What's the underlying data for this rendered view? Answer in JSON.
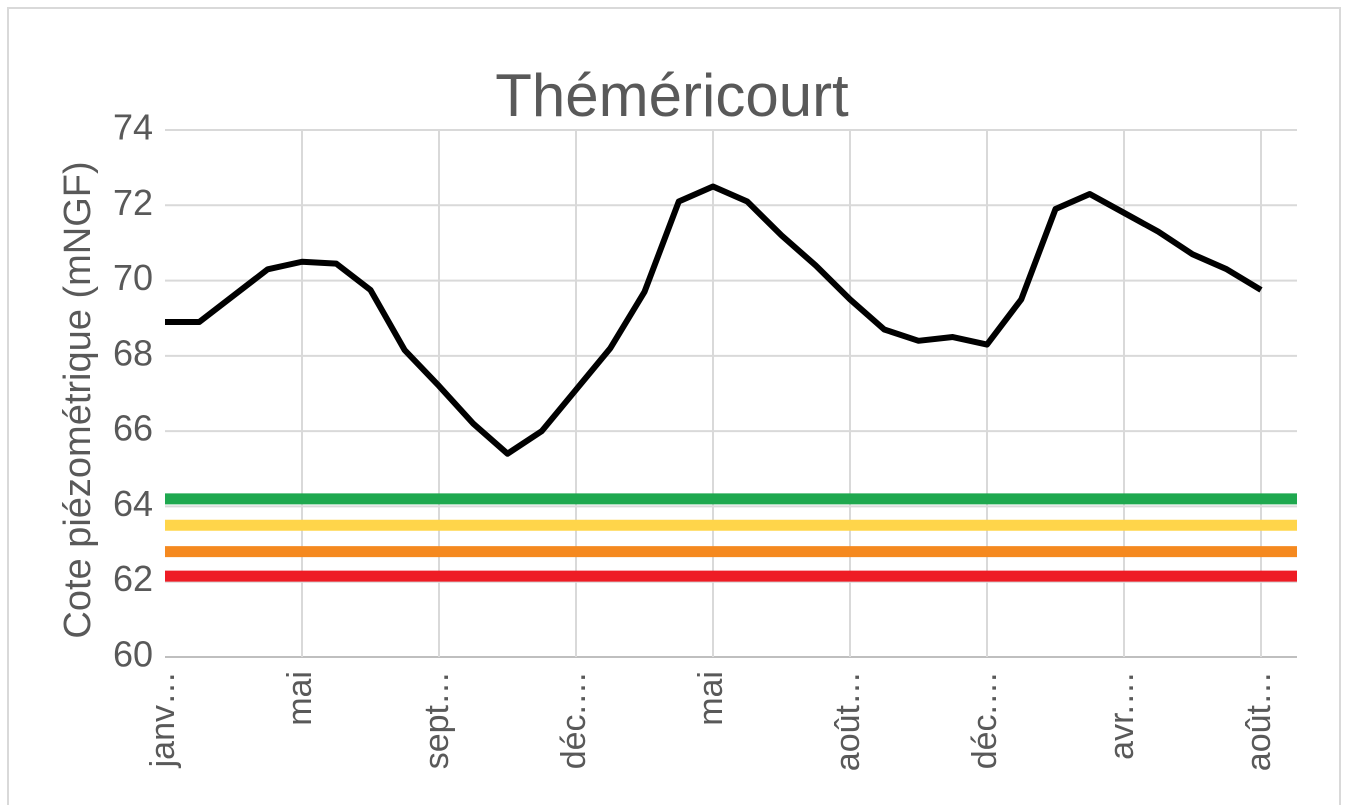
{
  "chart_data": {
    "type": "line",
    "title": "Théméricourt",
    "y_label": "Cote piézométrique (mNGF)",
    "categories": [
      "janv…",
      null,
      null,
      null,
      "mai",
      null,
      null,
      null,
      "sept…",
      null,
      null,
      null,
      "déc.…",
      null,
      null,
      null,
      "mai",
      null,
      null,
      null,
      "août…",
      null,
      null,
      null,
      "déc.…",
      null,
      null,
      null,
      "avr.…",
      null,
      null,
      null,
      "août…"
    ],
    "series": [
      {
        "color": "#000000",
        "values": [
          68.9,
          68.9,
          69.6,
          70.3,
          70.5,
          70.45,
          69.75,
          68.15,
          67.2,
          66.2,
          65.4,
          66.0,
          67.1,
          68.2,
          69.7,
          72.1,
          72.5,
          72.1,
          71.2,
          70.4,
          69.5,
          68.7,
          68.4,
          68.5,
          68.3,
          69.5,
          71.9,
          72.3,
          71.8,
          71.3,
          70.7,
          70.3,
          69.75
        ]
      }
    ],
    "thresholds": [
      {
        "value": 64.2,
        "color": "#1fa84f"
      },
      {
        "value": 63.5,
        "color": "#ffd54a"
      },
      {
        "value": 62.8,
        "color": "#f5891f"
      },
      {
        "value": 62.15,
        "color": "#ee1c25"
      }
    ],
    "ylim": [
      60,
      74
    ],
    "yticks": [
      60,
      62,
      64,
      66,
      68,
      70,
      72,
      74
    ],
    "grid": true
  }
}
